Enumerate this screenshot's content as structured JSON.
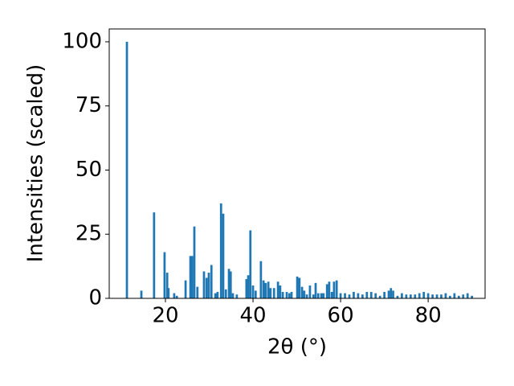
{
  "chart_data": {
    "type": "bar",
    "xlabel": "2θ (°)",
    "ylabel": "Intensities (scaled)",
    "color": "#1f77b4",
    "bar_width": 0.5,
    "x": [
      11.2,
      14.5,
      17.4,
      19.8,
      20.4,
      20.7,
      22.0,
      22.6,
      24.6,
      25.7,
      26.1,
      26.6,
      27.3,
      28.8,
      29.4,
      29.9,
      30.5,
      31.4,
      31.9,
      32.7,
      33.2,
      33.8,
      34.5,
      34.9,
      35.4,
      36.3,
      38.5,
      38.9,
      39.4,
      40.0,
      40.6,
      41.8,
      42.4,
      42.9,
      43.5,
      44.0,
      44.8,
      45.7,
      46.2,
      46.8,
      47.7,
      48.3,
      48.8,
      50.1,
      50.6,
      51.2,
      51.7,
      52.3,
      53.0,
      53.8,
      54.3,
      54.9,
      55.6,
      56.1,
      56.9,
      57.4,
      58.0,
      58.5,
      59.1,
      60.0,
      61.0,
      62.0,
      63.0,
      64.0,
      65.0,
      66.0,
      67.0,
      68.0,
      69.0,
      70.0,
      71.0,
      71.5,
      72.0,
      73.0,
      74.0,
      75.0,
      76.0,
      77.0,
      78.0,
      79.0,
      80.0,
      81.0,
      82.0,
      83.0,
      84.0,
      85.0,
      86.0,
      87.0,
      88.0,
      89.0,
      90.0
    ],
    "values": [
      100,
      3,
      33.5,
      18,
      10,
      4,
      2,
      1,
      7,
      16.5,
      16.5,
      28,
      4.5,
      10.5,
      8,
      10,
      13,
      2,
      2.5,
      37,
      33,
      3.5,
      11.5,
      10.5,
      2,
      1.5,
      7.5,
      9,
      26.5,
      5,
      3,
      14.5,
      7,
      6,
      6.5,
      4,
      4,
      6.5,
      5,
      2.5,
      2.5,
      2,
      2.5,
      8.5,
      8,
      4.5,
      3,
      1.5,
      5,
      1.5,
      6,
      2,
      2,
      2,
      5.5,
      6.5,
      2.5,
      6.5,
      7,
      2,
      2,
      1.5,
      2.5,
      2,
      1.5,
      2.5,
      2.5,
      2,
      1,
      2.5,
      3,
      4,
      3,
      1,
      2,
      1.5,
      1.5,
      1.5,
      2,
      2.5,
      2,
      1.5,
      1.5,
      1.5,
      2,
      1,
      2,
      1,
      1.5,
      2,
      1
    ],
    "xlim": [
      7.16,
      93.0
    ],
    "ylim": [
      0,
      105.0
    ],
    "xticks": [
      20,
      40,
      60,
      80
    ],
    "yticks": [
      0,
      25,
      50,
      75,
      100
    ]
  }
}
